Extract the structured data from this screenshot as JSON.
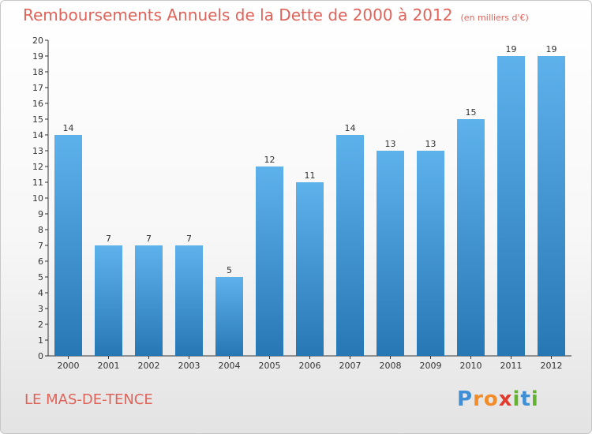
{
  "title": "Remboursements Annuels de la Dette de 2000 à 2012",
  "subtitle": "(en milliers d'€)",
  "city": "LE MAS-DE-TENCE",
  "logo": {
    "text": "Proxiti",
    "letters": [
      {
        "ch": "P",
        "color": "#3f8fd6"
      },
      {
        "ch": "r",
        "color": "#f28c28"
      },
      {
        "ch": "o",
        "color": "#f28c28"
      },
      {
        "ch": "x",
        "color": "#e23b2e"
      },
      {
        "ch": "i",
        "color": "#62b32f"
      },
      {
        "ch": "t",
        "color": "#3f8fd6"
      },
      {
        "ch": "i",
        "color": "#62b32f"
      }
    ]
  },
  "colors": {
    "title": "#e0635a",
    "bar_top": "#5eb2ec",
    "bar_bottom": "#2777b5",
    "axis": "#333333"
  },
  "chart_data": {
    "type": "bar",
    "title": "Remboursements Annuels de la Dette de 2000 à 2012",
    "subtitle": "(en milliers d'€)",
    "categories": [
      "2000",
      "2001",
      "2002",
      "2003",
      "2004",
      "2005",
      "2006",
      "2007",
      "2008",
      "2009",
      "2010",
      "2011",
      "2012"
    ],
    "values": [
      14,
      7,
      7,
      7,
      5,
      12,
      11,
      14,
      13,
      13,
      15,
      19,
      19
    ],
    "ylim": [
      0,
      20
    ],
    "yticks": [
      0,
      1,
      2,
      3,
      4,
      5,
      6,
      7,
      8,
      9,
      10,
      11,
      12,
      13,
      14,
      15,
      16,
      17,
      18,
      19,
      20
    ],
    "grid": false,
    "legend": "none"
  }
}
